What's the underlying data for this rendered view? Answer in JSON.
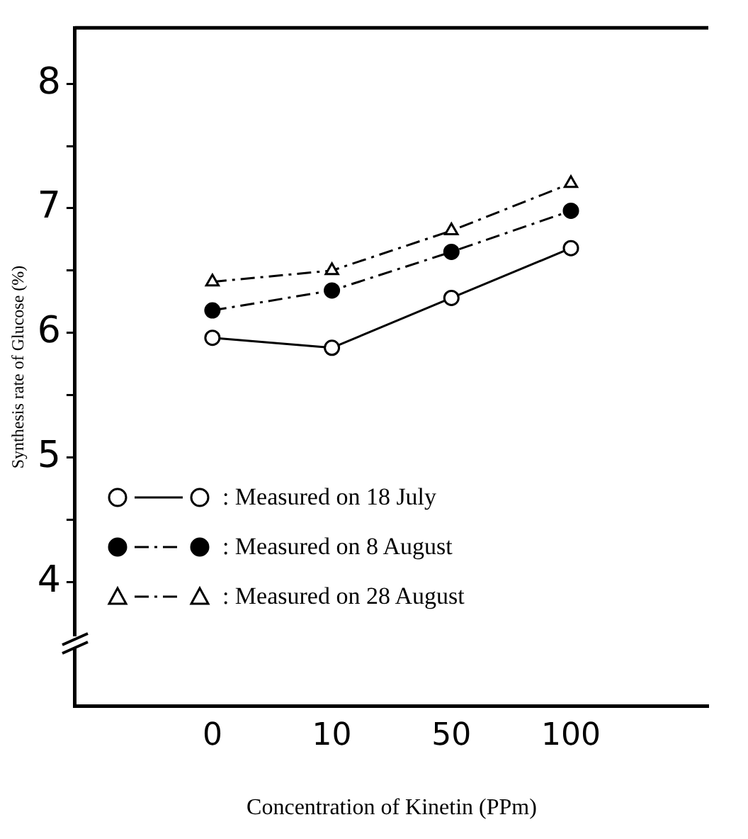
{
  "chart_data": {
    "type": "line",
    "xlabel": "Concentration of Kinetin (PPm)",
    "ylabel": "Synthesis rate of Glucose (%)",
    "categories": [
      "0",
      "10",
      "50",
      "100"
    ],
    "series": [
      {
        "name": ": Measured on 18 July",
        "color": "#000000",
        "values": [
          5.96,
          5.88,
          6.28,
          6.68
        ],
        "marker": "circle",
        "line_style": "solid"
      },
      {
        "name": ": Measured on 8 August",
        "color": "#000000",
        "values": [
          6.18,
          6.34,
          6.65,
          6.98
        ],
        "marker": "circle",
        "line_style": "dashed"
      },
      {
        "name": ": Measured on 28 August",
        "color": "#000000",
        "values": [
          6.41,
          6.5,
          6.82,
          7.2
        ],
        "marker": "triangle",
        "line_style": "dashed"
      }
    ],
    "ylim": [
      3,
      8.45
    ],
    "yticks": [
      4,
      {
        "value": 4.5,
        "label": null
      },
      5,
      {
        "value": 5.5,
        "label": null
      },
      6,
      {
        "value": 6.5,
        "label": null
      },
      7,
      {
        "value": 7.5,
        "label": null
      },
      8
    ],
    "grid": false,
    "legend": "bottom left"
  }
}
